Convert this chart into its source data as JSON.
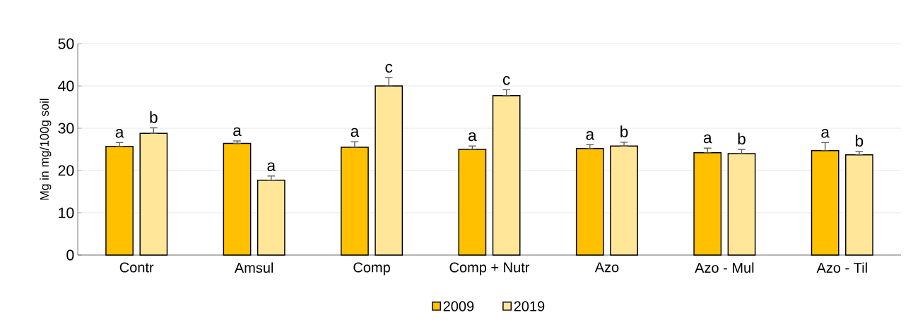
{
  "chart_data": {
    "type": "bar",
    "ylabel": "Mg in mg/100g soil",
    "categories": [
      "Contr",
      "Amsul",
      "Comp",
      "Comp + Nutr",
      "Azo",
      "Azo - Mul",
      "Azo - Til"
    ],
    "series": [
      {
        "name": "2009",
        "color": "#ffc000",
        "values": [
          25.7,
          26.4,
          25.5,
          25.0,
          25.2,
          24.2,
          24.7
        ],
        "errors": [
          [
            25.7,
            26.6
          ],
          [
            26.4,
            27.0
          ],
          [
            25.5,
            26.8
          ],
          [
            25.0,
            25.8
          ],
          [
            25.2,
            26.1
          ],
          [
            24.2,
            25.3
          ],
          [
            24.7,
            26.6
          ]
        ],
        "value_labels": [
          "a",
          "a",
          "a",
          "a",
          "a",
          "a",
          "a"
        ]
      },
      {
        "name": "2019",
        "color": "#ffe699",
        "values": [
          28.8,
          17.7,
          40.0,
          37.7,
          25.8,
          24.0,
          23.7
        ],
        "errors": [
          [
            28.8,
            30.1
          ],
          [
            17.7,
            18.7
          ],
          [
            40.0,
            42.0
          ],
          [
            37.7,
            39.1
          ],
          [
            25.8,
            26.7
          ],
          [
            24.0,
            25.0
          ],
          [
            23.7,
            24.5
          ]
        ],
        "value_labels": [
          "b",
          "a",
          "c",
          "c",
          "b",
          "b",
          "b"
        ]
      }
    ],
    "ylim": [
      0,
      50
    ],
    "yticks": [
      0,
      10,
      20,
      30,
      40,
      50
    ],
    "grid": "y",
    "legend": "bottom"
  }
}
